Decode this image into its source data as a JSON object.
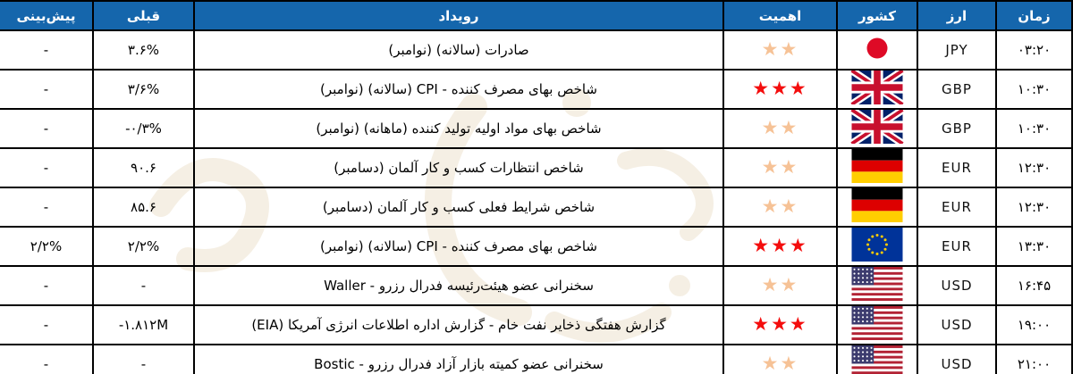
{
  "colors": {
    "header_bg": "#1566AC",
    "header_text": "#FFFFFF",
    "star_high": "#F40D0D",
    "star_medium": "#F6C296",
    "border": "#000000",
    "background": "#FFFFFF"
  },
  "table": {
    "headers": {
      "time": "زمان",
      "currency": "ارز",
      "country": "کشور",
      "importance": "اهمیت",
      "event": "رویداد",
      "previous": "قبلی",
      "forecast": "پیش‌بینی"
    },
    "rows": [
      {
        "time": "۰۳:۲۰",
        "currency": "JPY",
        "flag": "japan-flag",
        "stars": 2,
        "event": "صادرات (سالانه) (نوامبر)",
        "previous": "۳.۶%",
        "forecast": "-"
      },
      {
        "time": "۱۰:۳۰",
        "currency": "GBP",
        "flag": "uk-flag",
        "stars": 3,
        "event": "شاخص بهای مصرف کننده - CPI (سالانه) (نوامبر)",
        "previous": "۳/۶%",
        "forecast": "-"
      },
      {
        "time": "۱۰:۳۰",
        "currency": "GBP",
        "flag": "uk-flag",
        "stars": 2,
        "event": "شاخص بهای مواد اولیه تولید کننده (ماهانه) (نوامبر)",
        "previous": "-۰/۳%",
        "forecast": "-"
      },
      {
        "time": "۱۲:۳۰",
        "currency": "EUR",
        "flag": "germany-flag",
        "stars": 2,
        "event": "شاخص انتظارات کسب و کار آلمان (دسامبر)",
        "previous": "۹۰.۶",
        "forecast": "-"
      },
      {
        "time": "۱۲:۳۰",
        "currency": "EUR",
        "flag": "germany-flag",
        "stars": 2,
        "event": "شاخص شرایط فعلی کسب و کار آلمان (دسامبر)",
        "previous": "۸۵.۶",
        "forecast": "-"
      },
      {
        "time": "۱۳:۳۰",
        "currency": "EUR",
        "flag": "eu-flag",
        "stars": 3,
        "event": "شاخص بهای مصرف کننده - CPI (سالانه) (نوامبر)",
        "previous": "۲/۲%",
        "forecast": "۲/۲%"
      },
      {
        "time": "۱۶:۴۵",
        "currency": "USD",
        "flag": "usa-flag",
        "stars": 2,
        "event": "سخنرانی عضو هیئت‌رئیسه فدرال رزرو - Waller",
        "previous": "-",
        "forecast": "-"
      },
      {
        "time": "۱۹:۰۰",
        "currency": "USD",
        "flag": "usa-flag",
        "stars": 3,
        "event": "گزارش هفتگی ذخایر نفت خام - گزارش اداره اطلاعات انرژی آمریکا (EIA)",
        "previous": "-۱.۸۱۲M",
        "forecast": "-"
      },
      {
        "time": "۲۱:۰۰",
        "currency": "USD",
        "flag": "usa-flag",
        "stars": 2,
        "event": "سخنرانی عضو کمیته بازار آزاد فدرال رزرو - Bostic",
        "previous": "-",
        "forecast": "-"
      }
    ]
  }
}
